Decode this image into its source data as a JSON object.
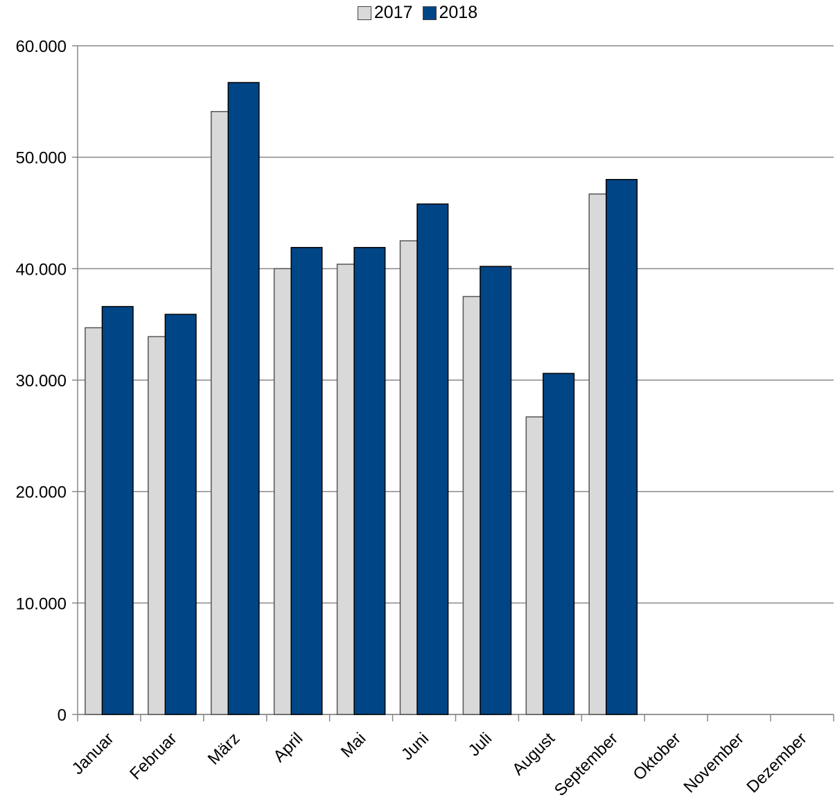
{
  "chart_data": {
    "type": "bar",
    "title": "",
    "xlabel": "",
    "ylabel": "",
    "categories": [
      "Januar",
      "Februar",
      "März",
      "April",
      "Mai",
      "Juni",
      "Juli",
      "August",
      "September",
      "Oktober",
      "November",
      "Dezember"
    ],
    "series": [
      {
        "name": "2017",
        "color": "#d9d9d9",
        "border": "#555555",
        "values": [
          34700,
          33900,
          54100,
          40000,
          40400,
          42500,
          37500,
          26700,
          46700,
          null,
          null,
          null
        ]
      },
      {
        "name": "2018",
        "color": "#004586",
        "border": "#000000",
        "values": [
          36600,
          35900,
          56700,
          41900,
          41900,
          45800,
          40200,
          30600,
          48000,
          null,
          null,
          null
        ]
      }
    ],
    "ylim": [
      0,
      60000
    ],
    "yticks": [
      0,
      10000,
      20000,
      30000,
      40000,
      50000,
      60000
    ],
    "ytick_labels": [
      "0",
      "10.000",
      "20.000",
      "30.000",
      "40.000",
      "50.000",
      "60.000"
    ],
    "grid": true,
    "legend_position": "top"
  }
}
